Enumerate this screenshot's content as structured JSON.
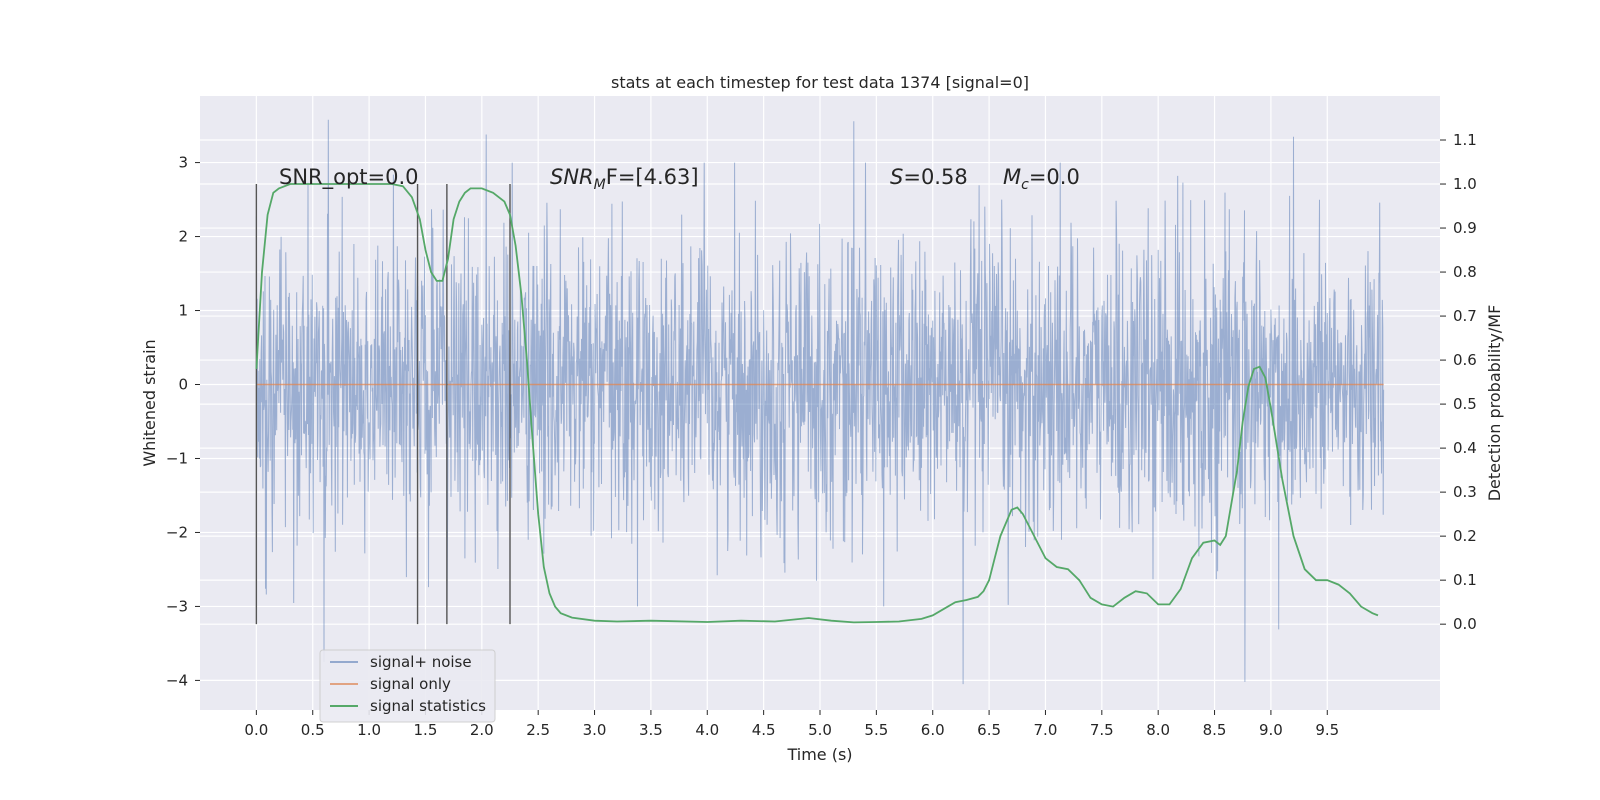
{
  "chart_data": {
    "type": "line",
    "title": "stats at each timestep for test data 1374 [signal=0]",
    "xlabel": "Time (s)",
    "ylabel": "Whitened strain",
    "ylabel_right": "Detection probability/MF",
    "xlim": [
      -0.5,
      10.5
    ],
    "ylim": [
      -4.4,
      3.9
    ],
    "ylim_right": [
      -0.195,
      1.2
    ],
    "x_ticks": [
      "0.0",
      "0.5",
      "1.0",
      "1.5",
      "2.0",
      "2.5",
      "3.0",
      "3.5",
      "4.0",
      "4.5",
      "5.0",
      "5.5",
      "6.0",
      "6.5",
      "7.0",
      "7.5",
      "8.0",
      "8.5",
      "9.0",
      "9.5"
    ],
    "y_ticks": [
      "3",
      "2",
      "1",
      "0",
      "−1",
      "−2",
      "−3",
      "−4"
    ],
    "y_ticks_right": [
      "1.1",
      "1.0",
      "0.9",
      "0.8",
      "0.7",
      "0.6",
      "0.5",
      "0.4",
      "0.3",
      "0.2",
      "0.1",
      "0.0"
    ],
    "grid": true,
    "legend_placement": "lower-left",
    "annotations": {
      "snr_opt": "SNR_opt=0.0",
      "snr_mf_a": "SNR",
      "snr_mf_sub": "M",
      "snr_mf_b": "F=[4.63]",
      "s_val_a": "S",
      "s_val_b": "=0.58",
      "mc_a": "M",
      "mc_sub": "c",
      "mc_b": "=0.0"
    },
    "vlines_x": [
      0.0,
      1.43,
      1.69,
      2.25
    ],
    "series": [
      {
        "name": "signal+ noise",
        "color": "#4c72b0",
        "x_range": [
          0.0,
          10.0
        ],
        "typical_amplitude": 1.6,
        "peaks": [
          {
            "x": 0.64,
            "y": 3.58
          },
          {
            "x": 2.04,
            "y": 3.38
          },
          {
            "x": 5.3,
            "y": 3.56
          },
          {
            "x": 9.2,
            "y": 3.35
          },
          {
            "x": 0.6,
            "y": -3.75
          },
          {
            "x": 6.27,
            "y": -4.05
          },
          {
            "x": 8.77,
            "y": -4.02
          },
          {
            "x": 9.07,
            "y": -3.31
          }
        ]
      },
      {
        "name": "signal only",
        "color": "#dd8452",
        "x": [
          0.0,
          10.0
        ],
        "values": [
          0.0,
          0.0
        ]
      },
      {
        "name": "signal statistics",
        "color": "#55a868",
        "axis": "right",
        "x": [
          0.0,
          0.05,
          0.1,
          0.15,
          0.2,
          0.3,
          0.5,
          0.8,
          1.0,
          1.2,
          1.3,
          1.38,
          1.45,
          1.5,
          1.55,
          1.6,
          1.65,
          1.7,
          1.75,
          1.8,
          1.85,
          1.9,
          2.0,
          2.1,
          2.2,
          2.25,
          2.3,
          2.35,
          2.4,
          2.45,
          2.5,
          2.55,
          2.6,
          2.65,
          2.7,
          2.8,
          3.0,
          3.2,
          3.5,
          4.0,
          4.3,
          4.6,
          4.9,
          5.1,
          5.3,
          5.5,
          5.7,
          5.9,
          6.0,
          6.1,
          6.2,
          6.3,
          6.4,
          6.45,
          6.5,
          6.55,
          6.6,
          6.65,
          6.7,
          6.75,
          6.8,
          6.9,
          7.0,
          7.1,
          7.2,
          7.3,
          7.4,
          7.5,
          7.6,
          7.7,
          7.8,
          7.9,
          8.0,
          8.1,
          8.2,
          8.3,
          8.4,
          8.5,
          8.55,
          8.6,
          8.7,
          8.75,
          8.8,
          8.85,
          8.9,
          8.95,
          9.0,
          9.1,
          9.2,
          9.3,
          9.4,
          9.5,
          9.6,
          9.7,
          9.8,
          9.9,
          9.95
        ],
        "values": [
          0.58,
          0.8,
          0.93,
          0.98,
          0.99,
          1.0,
          1.0,
          1.0,
          1.0,
          1.0,
          0.995,
          0.97,
          0.92,
          0.85,
          0.8,
          0.78,
          0.78,
          0.83,
          0.92,
          0.96,
          0.98,
          0.99,
          0.99,
          0.98,
          0.96,
          0.93,
          0.86,
          0.75,
          0.6,
          0.42,
          0.25,
          0.13,
          0.07,
          0.04,
          0.025,
          0.015,
          0.008,
          0.006,
          0.008,
          0.005,
          0.008,
          0.006,
          0.014,
          0.008,
          0.004,
          0.005,
          0.006,
          0.012,
          0.02,
          0.035,
          0.05,
          0.055,
          0.062,
          0.075,
          0.1,
          0.15,
          0.2,
          0.23,
          0.26,
          0.265,
          0.25,
          0.2,
          0.15,
          0.13,
          0.125,
          0.1,
          0.06,
          0.045,
          0.04,
          0.06,
          0.075,
          0.07,
          0.045,
          0.045,
          0.08,
          0.15,
          0.185,
          0.19,
          0.18,
          0.2,
          0.35,
          0.46,
          0.54,
          0.58,
          0.585,
          0.56,
          0.49,
          0.33,
          0.2,
          0.125,
          0.1,
          0.1,
          0.09,
          0.07,
          0.04,
          0.025,
          0.02
        ]
      }
    ]
  }
}
